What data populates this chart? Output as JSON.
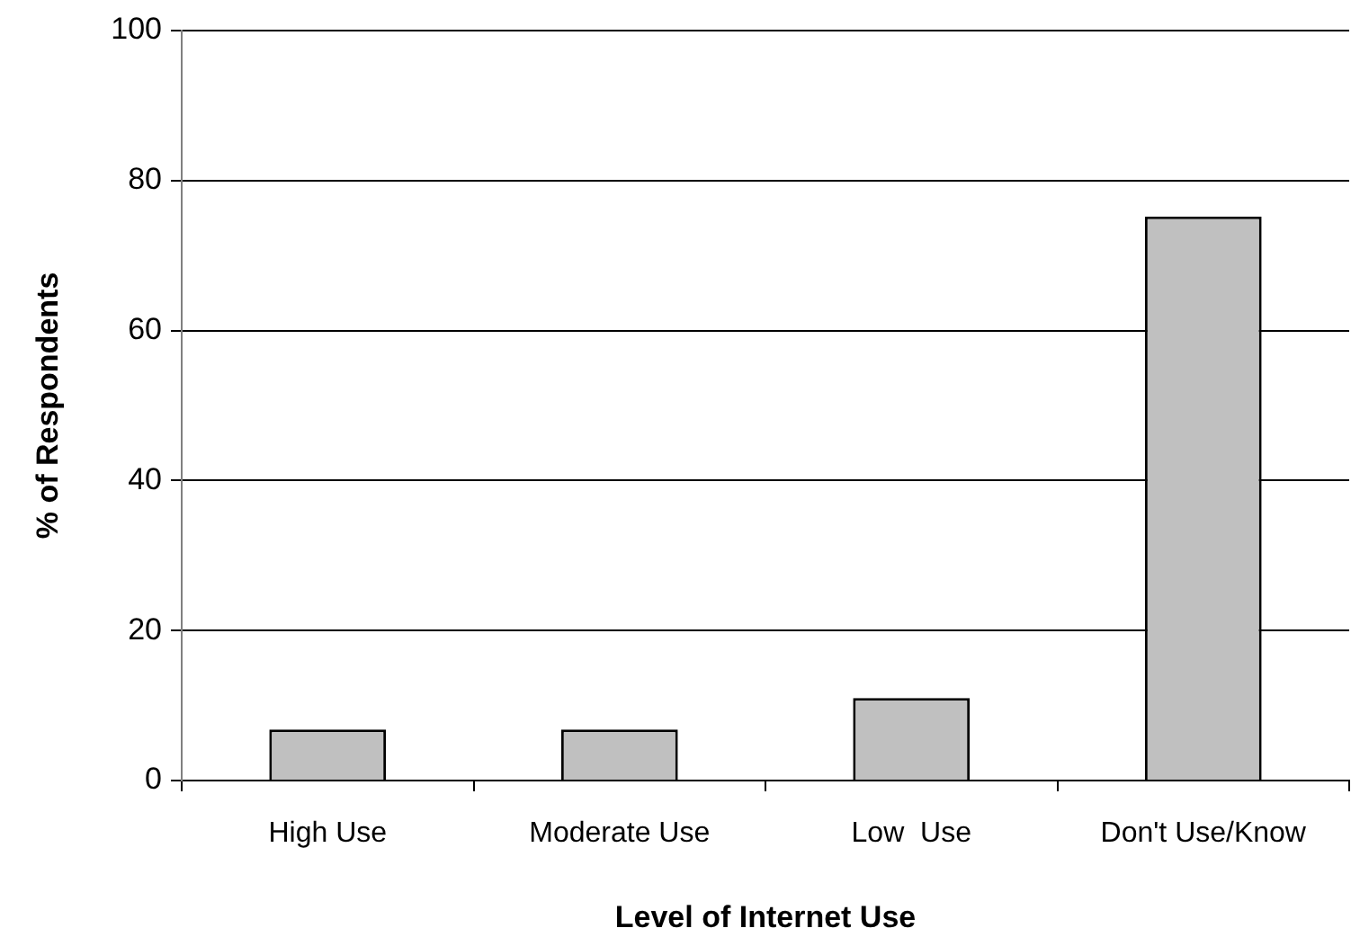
{
  "chart_data": {
    "type": "bar",
    "xlabel": "Level of Internet Use",
    "ylabel": "% of Respondents",
    "categories": [
      "High Use",
      "Moderate Use",
      "Low  Use",
      "Don't Use/Know"
    ],
    "values": [
      6.8,
      6.8,
      11,
      75.2
    ],
    "color": "#c0c0c0",
    "ylim": [
      0,
      100
    ],
    "yticks": [
      0,
      20,
      40,
      60,
      80,
      100
    ],
    "grid": "y"
  }
}
